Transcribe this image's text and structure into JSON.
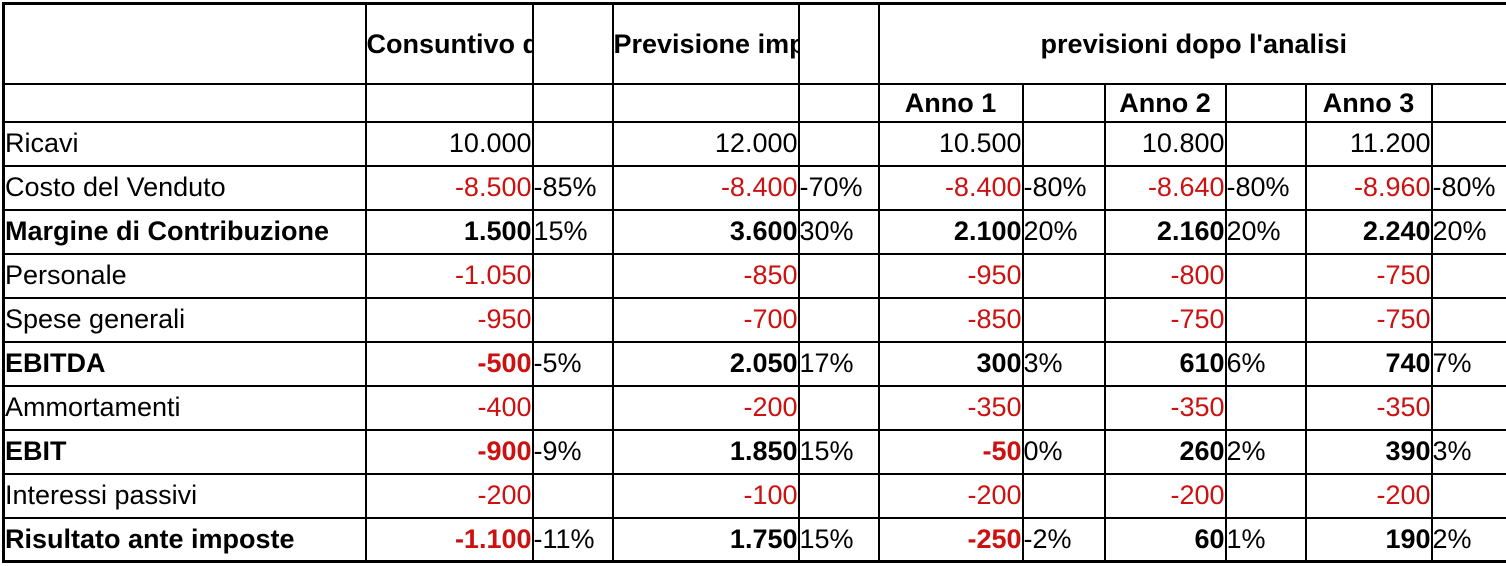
{
  "colors": {
    "negative_text": "#CC1111",
    "text": "#000000",
    "border": "#000000",
    "background": "#FFFFFF"
  },
  "table": {
    "header": {
      "corner": "",
      "consuntivo": "Consuntivo di partenza",
      "previsione": "Previsione imprenditore",
      "analisi": "previsioni dopo l'analisi",
      "anno1": "Anno 1",
      "anno2": "Anno 2",
      "anno3": "Anno 3"
    },
    "rows": [
      {
        "label": "Ricavi",
        "bold": false,
        "values": [
          "10.000",
          "12.000",
          "10.500",
          "10.800",
          "11.200"
        ],
        "pcts": [
          "",
          "",
          "",
          "",
          ""
        ]
      },
      {
        "label": "Costo del Venduto",
        "bold": false,
        "values": [
          "-8.500",
          "-8.400",
          "-8.400",
          "-8.640",
          "-8.960"
        ],
        "pcts": [
          "-85%",
          "-70%",
          "-80%",
          "-80%",
          "-80%"
        ]
      },
      {
        "label": "Margine di Contribuzione",
        "bold": true,
        "values": [
          "1.500",
          "3.600",
          "2.100",
          "2.160",
          "2.240"
        ],
        "pcts": [
          "15%",
          "30%",
          "20%",
          "20%",
          "20%"
        ]
      },
      {
        "label": "Personale",
        "bold": false,
        "values": [
          "-1.050",
          "-850",
          "-950",
          "-800",
          "-750"
        ],
        "pcts": [
          "",
          "",
          "",
          "",
          ""
        ]
      },
      {
        "label": "Spese generali",
        "bold": false,
        "values": [
          "-950",
          "-700",
          "-850",
          "-750",
          "-750"
        ],
        "pcts": [
          "",
          "",
          "",
          "",
          ""
        ]
      },
      {
        "label": "EBITDA",
        "bold": true,
        "values": [
          "-500",
          "2.050",
          "300",
          "610",
          "740"
        ],
        "pcts": [
          "-5%",
          "17%",
          "3%",
          "6%",
          "7%"
        ]
      },
      {
        "label": "Ammortamenti",
        "bold": false,
        "values": [
          "-400",
          "-200",
          "-350",
          "-350",
          "-350"
        ],
        "pcts": [
          "",
          "",
          "",
          "",
          ""
        ]
      },
      {
        "label": "EBIT",
        "bold": true,
        "values": [
          "-900",
          "1.850",
          "-50",
          "260",
          "390"
        ],
        "pcts": [
          "-9%",
          "15%",
          "0%",
          "2%",
          "3%"
        ]
      },
      {
        "label": "Interessi passivi",
        "bold": false,
        "values": [
          "-200",
          "-100",
          "-200",
          "-200",
          "-200"
        ],
        "pcts": [
          "",
          "",
          "",
          "",
          ""
        ]
      },
      {
        "label": "Risultato ante imposte",
        "bold": true,
        "values": [
          "-1.100",
          "1.750",
          "-250",
          "60",
          "190"
        ],
        "pcts": [
          "-11%",
          "15%",
          "-2%",
          "1%",
          "2%"
        ]
      }
    ]
  }
}
